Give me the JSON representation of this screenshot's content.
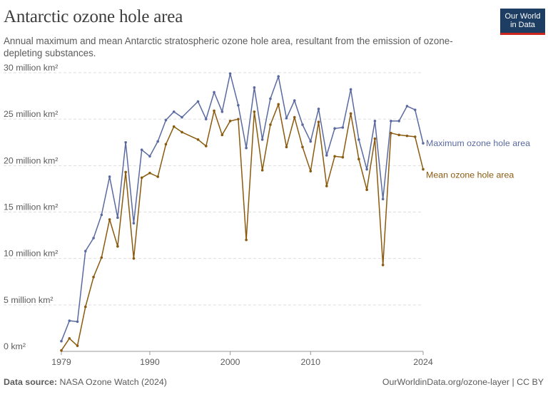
{
  "header": {
    "title": "Antarctic ozone hole area",
    "subtitle": "Annual maximum and mean Antarctic stratospheric ozone hole area, resultant from the emission of ozone-depleting substances.",
    "logo_text": "Our World in Data"
  },
  "footer": {
    "source_label": "Data source:",
    "source_value": "NASA Ozone Watch (2024)",
    "url_license": "OurWorldinData.org/ozone-layer | CC BY"
  },
  "colors": {
    "max_series": "#5a6aa0",
    "mean_series": "#8a5a0f",
    "grid": "#dddddd",
    "axis": "#999999"
  },
  "chart_data": {
    "type": "line",
    "title": "Antarctic ozone hole area",
    "xlim": [
      1979,
      2024
    ],
    "ylim": [
      0,
      30
    ],
    "y_unit": "million km²",
    "x_ticks": [
      1979,
      1990,
      2000,
      2010,
      2024
    ],
    "y_ticks": [
      0,
      5,
      10,
      15,
      20,
      25,
      30
    ],
    "y_tick_labels": [
      "0 km²",
      "5 million km²",
      "10 million km²",
      "15 million km²",
      "20 million km²",
      "25 million km²",
      "30 million km²"
    ],
    "grid": true,
    "legend": "right-end labels",
    "x": [
      1979,
      1980,
      1981,
      1982,
      1983,
      1984,
      1985,
      1986,
      1987,
      1988,
      1989,
      1990,
      1991,
      1992,
      1993,
      1994,
      1996,
      1997,
      1998,
      1999,
      2000,
      2001,
      2002,
      2003,
      2004,
      2005,
      2006,
      2007,
      2008,
      2009,
      2010,
      2011,
      2012,
      2013,
      2014,
      2015,
      2016,
      2017,
      2018,
      2019,
      2020,
      2021,
      2022,
      2023,
      2024
    ],
    "series": [
      {
        "name": "Maximum ozone hole area",
        "values": [
          1.1,
          3.3,
          3.2,
          10.8,
          12.2,
          14.7,
          18.8,
          14.4,
          22.5,
          13.8,
          21.7,
          21.0,
          22.6,
          24.9,
          25.8,
          25.2,
          26.9,
          25.0,
          27.9,
          25.8,
          29.9,
          26.5,
          21.9,
          28.4,
          22.8,
          27.2,
          29.6,
          25.1,
          27.0,
          24.4,
          22.6,
          26.1,
          21.1,
          24.0,
          24.1,
          28.2,
          22.8,
          19.6,
          24.8,
          16.4,
          24.8,
          24.8,
          26.4,
          26.0,
          22.4
        ]
      },
      {
        "name": "Mean ozone hole area",
        "values": [
          0.1,
          1.4,
          0.6,
          4.8,
          8.0,
          10.1,
          14.2,
          11.3,
          19.3,
          10.0,
          18.7,
          19.2,
          18.8,
          22.3,
          24.2,
          23.6,
          22.8,
          22.1,
          25.9,
          23.3,
          24.8,
          25.0,
          12.0,
          25.8,
          19.5,
          24.4,
          26.6,
          22.0,
          25.2,
          22.0,
          19.4,
          24.7,
          17.8,
          21.0,
          20.9,
          25.6,
          20.7,
          17.4,
          22.9,
          9.3,
          23.5,
          23.3,
          23.2,
          23.1,
          19.6
        ]
      }
    ]
  }
}
